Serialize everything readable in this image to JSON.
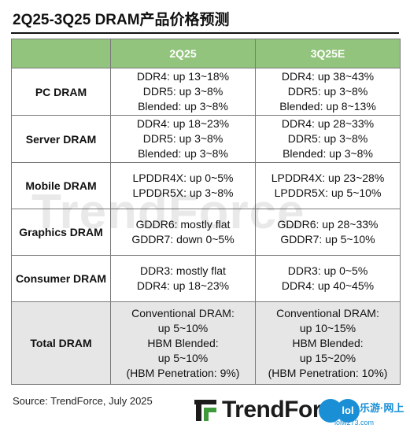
{
  "title": "2Q25-3Q25 DRAM产品价格预测",
  "table": {
    "headers": [
      "",
      "2Q25",
      "3Q25E"
    ],
    "rows": [
      {
        "category": "PC DRAM",
        "q2": [
          "DDR4: up 13~18%",
          "DDR5: up 3~8%",
          "Blended: up 3~8%"
        ],
        "q3": [
          "DDR4: up 38~43%",
          "DDR5: up 3~8%",
          "Blended: up 8~13%"
        ]
      },
      {
        "category": "Server DRAM",
        "q2": [
          "DDR4: up 18~23%",
          "DDR5: up 3~8%",
          "Blended: up 3~8%"
        ],
        "q3": [
          "DDR4: up 28~33%",
          "DDR5: up 3~8%",
          "Blended: up 3~8%"
        ]
      },
      {
        "category": "Mobile DRAM",
        "q2": [
          "LPDDR4X: up 0~5%",
          "LPDDR5X: up 3~8%"
        ],
        "q3": [
          "LPDDR4X: up 23~28%",
          "LPDDR5X: up 5~10%"
        ]
      },
      {
        "category": "Graphics DRAM",
        "q2": [
          "GDDR6: mostly flat",
          "GDDR7: down 0~5%"
        ],
        "q3": [
          "GDDR6: up 28~33%",
          "GDDR7: up 5~10%"
        ]
      },
      {
        "category": "Consumer DRAM",
        "q2": [
          "DDR3: mostly flat",
          "DDR4: up 18~23%"
        ],
        "q3": [
          "DDR3: up 0~5%",
          "DDR4: up 40~45%"
        ]
      },
      {
        "category": "Total DRAM",
        "q2": [
          "Conventional DRAM:",
          "up 5~10%",
          "HBM Blended:",
          "up 5~10%",
          "(HBM Penetration: 9%)"
        ],
        "q3": [
          "Conventional DRAM:",
          "up 10~15%",
          "HBM Blended:",
          "up 15~20%",
          "(HBM Penetration: 10%)"
        ]
      }
    ]
  },
  "source": "Source: TrendForce, July 2025",
  "logo_text": "TrendForce",
  "watermark_text": "TrendForce",
  "badge": {
    "circle_text": "lol",
    "label": "乐游·网上",
    "url": "lolw273.com"
  },
  "colors": {
    "header_bg": "#93c47d",
    "total_row_bg": "#e6e6e6",
    "logo_green": "#3f9a3c",
    "badge_blue": "#1a8fd6"
  },
  "icons": {
    "logo_mark": "trendforce-logo-icon"
  }
}
